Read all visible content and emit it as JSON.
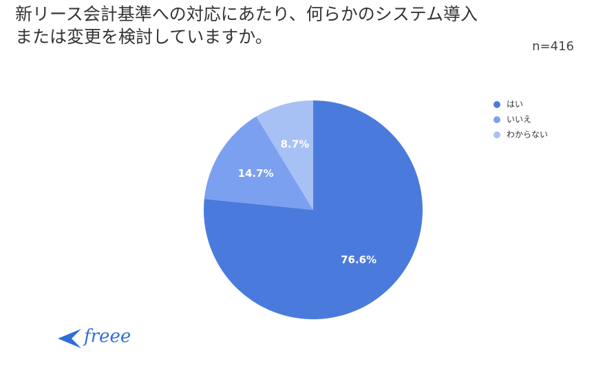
{
  "chart_data": {
    "type": "pie",
    "title": [
      "新リース会計基準への対応にあたり、何らかのシステム導入",
      "または変更を検討していますか。"
    ],
    "subtitle": "n=416",
    "categories": [
      "はい",
      "いいえ",
      "わからない"
    ],
    "values": [
      76.6,
      14.7,
      8.7
    ],
    "value_labels": [
      "76.6%",
      "14.7%",
      "8.7%"
    ],
    "colors": [
      "#4a7bdc",
      "#7ba0ef",
      "#a8c1f5"
    ],
    "legend": "right"
  },
  "logo": "freee"
}
